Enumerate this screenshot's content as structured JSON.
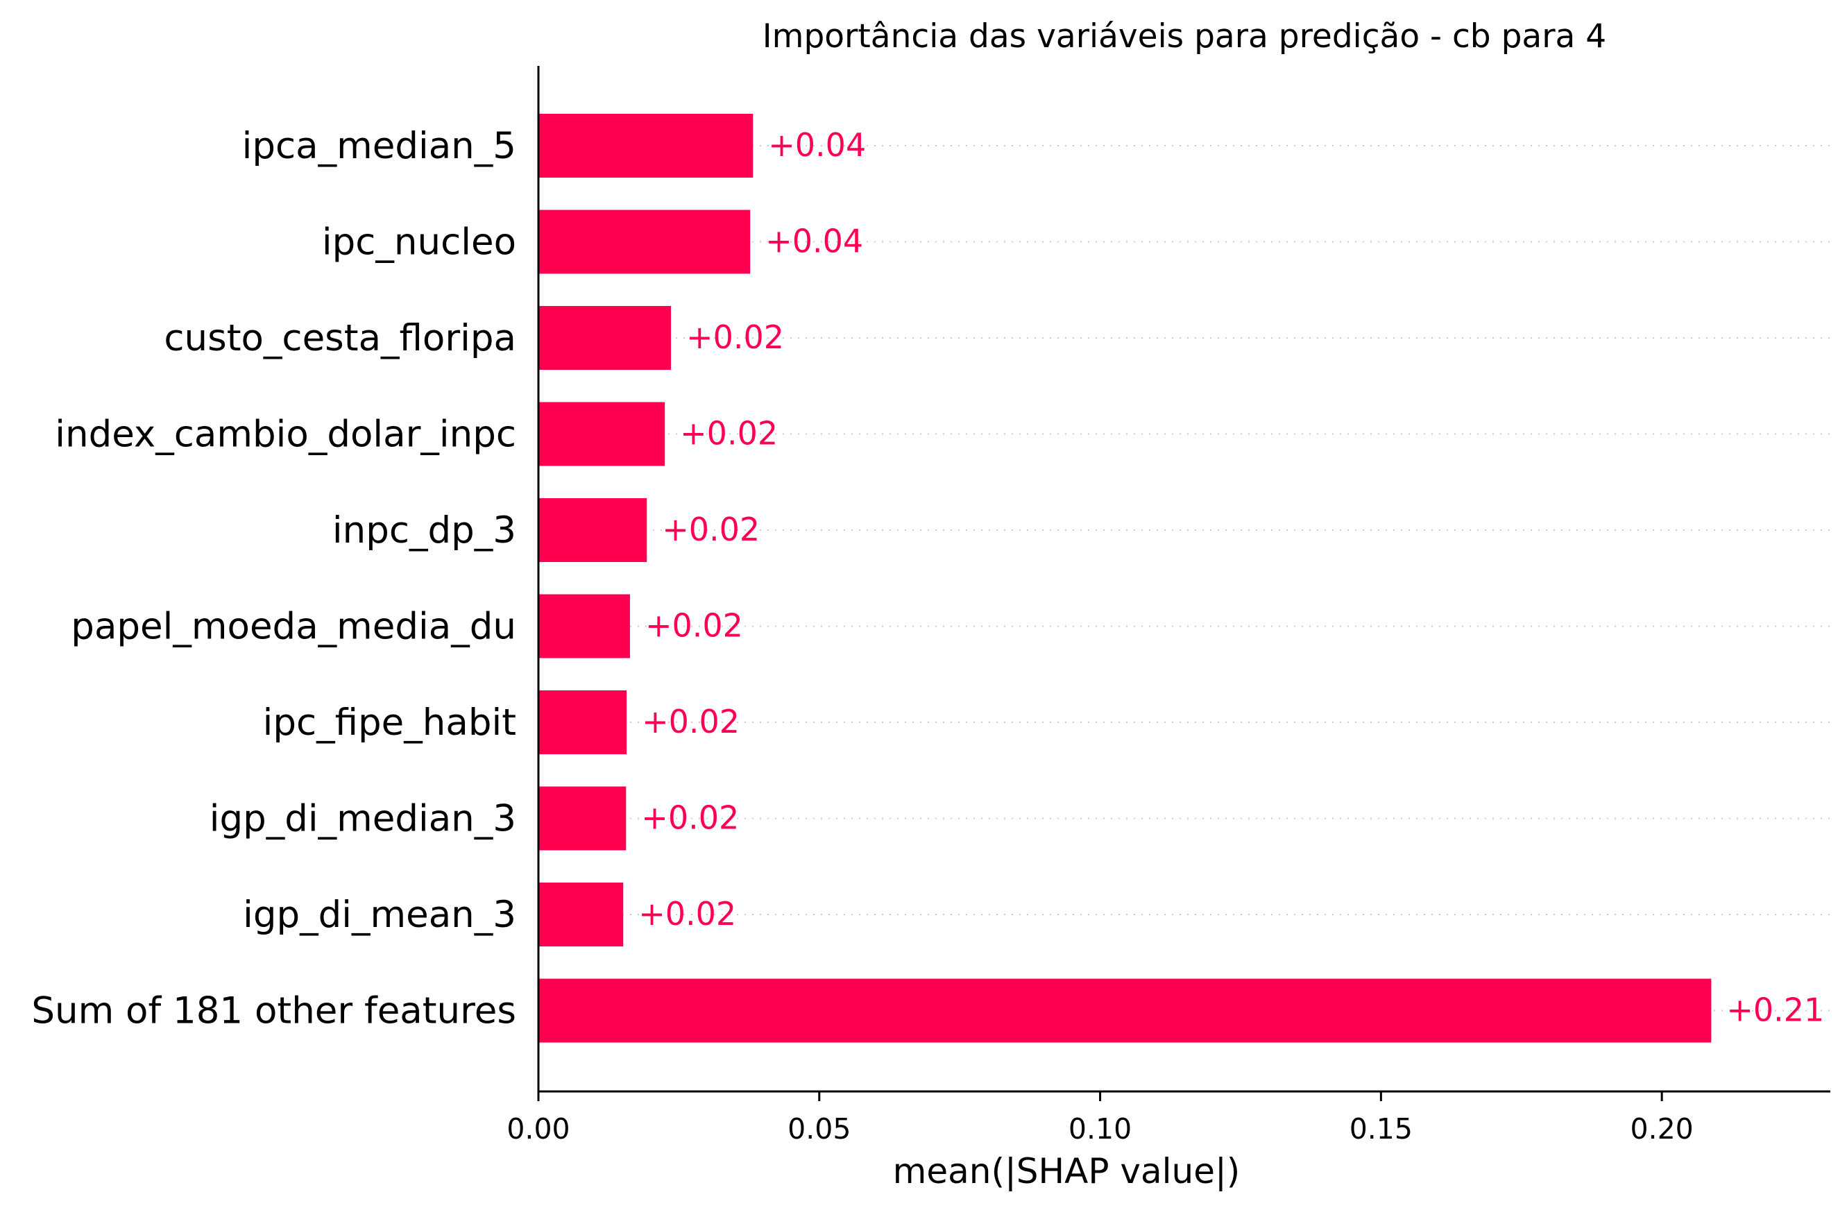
{
  "chart_data": {
    "type": "bar",
    "orientation": "horizontal",
    "title": "Importância das variáveis para predição - cb para 4",
    "xlabel": "mean(|SHAP value|)",
    "ylabel": "",
    "categories": [
      "ipca_median_5",
      "ipc_nucleo",
      "custo_cesta_floripa",
      "index_cambio_dolar_inpc",
      "inpc_dp_3",
      "papel_moeda_media_du",
      "ipc_fipe_habit",
      "igp_di_median_3",
      "igp_di_mean_3",
      "Sum of 181 other features"
    ],
    "values": [
      0.0382,
      0.0377,
      0.0236,
      0.0225,
      0.0193,
      0.0163,
      0.0157,
      0.0156,
      0.0151,
      0.2088
    ],
    "value_labels": [
      "+0.04",
      "+0.04",
      "+0.02",
      "+0.02",
      "+0.02",
      "+0.02",
      "+0.02",
      "+0.02",
      "+0.02",
      "+0.21"
    ],
    "xlim": [
      0,
      0.23
    ],
    "xticks": [
      0.0,
      0.05,
      0.1,
      0.15,
      0.2
    ],
    "xtick_labels": [
      "0.00",
      "0.05",
      "0.10",
      "0.15",
      "0.20"
    ],
    "grid": false,
    "bar_color": "#ff0051",
    "label_color": "#ff0051"
  }
}
